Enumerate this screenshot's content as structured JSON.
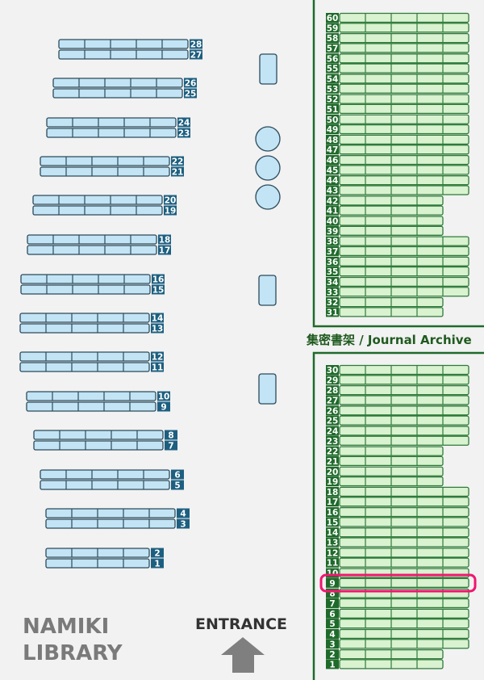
{
  "library_name": [
    "NAMIKI",
    "LIBRARY"
  ],
  "entrance_label": "ENTRANCE",
  "archive_label": "集密書架 / Journal Archive",
  "highlighted_shelf": {
    "section": "journal_archive",
    "number": 9
  },
  "colors": {
    "general_shelf_fill": "#c2e4f5",
    "general_shelf_stroke": "#2c4a5a",
    "general_label_bg": "#1d5f80",
    "archive_shelf_fill": "#d9f2d0",
    "archive_shelf_stroke": "#2e7a3a",
    "archive_label_bg": "#1f6a2a",
    "archive_border": "#1f6a2a",
    "highlight": "#f0166e",
    "background": "#f2f2f2"
  },
  "general_shelves": [
    {
      "numbers": [
        28,
        27
      ],
      "cells": 5
    },
    {
      "numbers": [
        26,
        25
      ],
      "cells": 5
    },
    {
      "numbers": [
        24,
        23
      ],
      "cells": 5
    },
    {
      "numbers": [
        22,
        21
      ],
      "cells": 5
    },
    {
      "numbers": [
        20,
        19
      ],
      "cells": 5
    },
    {
      "numbers": [
        18,
        17
      ],
      "cells": 5
    },
    {
      "numbers": [
        16,
        15
      ],
      "cells": 5
    },
    {
      "numbers": [
        14,
        13
      ],
      "cells": 5
    },
    {
      "numbers": [
        12,
        11
      ],
      "cells": 5
    },
    {
      "numbers": [
        10,
        9
      ],
      "cells": 5
    },
    {
      "numbers": [
        8,
        7
      ],
      "cells": 5
    },
    {
      "numbers": [
        6,
        5
      ],
      "cells": 5
    },
    {
      "numbers": [
        4,
        3
      ],
      "cells": 5
    },
    {
      "numbers": [
        2,
        1
      ],
      "cells": 4
    }
  ],
  "archive_upper": [
    {
      "numbers": [
        60,
        59
      ],
      "cells": 5
    },
    {
      "numbers": [
        58,
        57
      ],
      "cells": 5
    },
    {
      "numbers": [
        56,
        55
      ],
      "cells": 5
    },
    {
      "numbers": [
        54,
        53
      ],
      "cells": 5
    },
    {
      "numbers": [
        52,
        51
      ],
      "cells": 5
    },
    {
      "numbers": [
        50,
        49
      ],
      "cells": 5
    },
    {
      "numbers": [
        48,
        47
      ],
      "cells": 5
    },
    {
      "numbers": [
        46,
        45
      ],
      "cells": 5
    },
    {
      "numbers": [
        44,
        43
      ],
      "cells": 5
    },
    {
      "numbers": [
        42,
        41
      ],
      "cells": 4
    },
    {
      "numbers": [
        40,
        39
      ],
      "cells": 4
    },
    {
      "numbers": [
        38,
        37
      ],
      "cells": 5
    },
    {
      "numbers": [
        36,
        35
      ],
      "cells": 5
    },
    {
      "numbers": [
        34,
        33
      ],
      "cells": 5
    },
    {
      "numbers": [
        32,
        31
      ],
      "cells": 4
    }
  ],
  "archive_lower": [
    {
      "numbers": [
        30,
        29
      ],
      "cells": 5
    },
    {
      "numbers": [
        28,
        27
      ],
      "cells": 5
    },
    {
      "numbers": [
        26,
        25
      ],
      "cells": 5
    },
    {
      "numbers": [
        24,
        23
      ],
      "cells": 5
    },
    {
      "numbers": [
        22,
        21
      ],
      "cells": 4
    },
    {
      "numbers": [
        20,
        19
      ],
      "cells": 4
    },
    {
      "numbers": [
        18,
        17
      ],
      "cells": 5
    },
    {
      "numbers": [
        16,
        15
      ],
      "cells": 5
    },
    {
      "numbers": [
        14,
        13
      ],
      "cells": 5
    },
    {
      "numbers": [
        12,
        11
      ],
      "cells": 5
    },
    {
      "numbers": [
        10,
        9
      ],
      "cells": 5
    },
    {
      "numbers": [
        8,
        7
      ],
      "cells": 5
    },
    {
      "numbers": [
        6,
        5
      ],
      "cells": 5
    },
    {
      "numbers": [
        4,
        3
      ],
      "cells": 5
    },
    {
      "numbers": [
        2,
        1
      ],
      "cells": 4
    }
  ],
  "furniture": [
    {
      "type": "table"
    },
    {
      "type": "round-table"
    },
    {
      "type": "round-table"
    },
    {
      "type": "round-table"
    },
    {
      "type": "table"
    },
    {
      "type": "table"
    }
  ]
}
